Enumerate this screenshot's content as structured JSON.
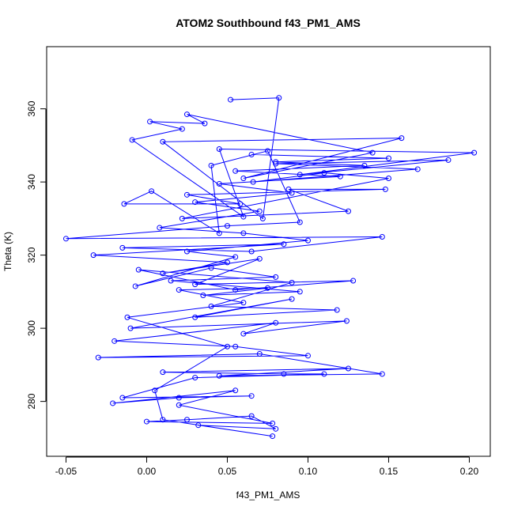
{
  "chart_data": {
    "type": "line",
    "title": "ATOM2 Southbound f43_PM1_AMS",
    "xlabel": "f43_PM1_AMS",
    "ylabel": "Theta (K)",
    "xlim": [
      -0.062,
      0.213
    ],
    "ylim": [
      265,
      377
    ],
    "x_ticks": [
      -0.05,
      0.0,
      0.05,
      0.1,
      0.15,
      0.2
    ],
    "x_tick_labels": [
      "-0.05",
      "0.00",
      "0.05",
      "0.10",
      "0.15",
      "0.20"
    ],
    "y_ticks": [
      280,
      300,
      320,
      340,
      360
    ],
    "y_tick_labels": [
      "280",
      "300",
      "320",
      "340",
      "360"
    ],
    "grid": false,
    "legend": "none",
    "series_color": "#0000ff",
    "series": [
      {
        "values": [
          [
            0.052,
            362.5
          ],
          [
            0.082,
            363.0
          ],
          [
            0.072,
            330.0
          ],
          [
            0.01,
            351.0
          ],
          [
            0.158,
            352.0
          ],
          [
            0.06,
            341.0
          ],
          [
            0.14,
            348.0
          ],
          [
            0.025,
            358.5
          ],
          [
            0.036,
            356.0
          ],
          [
            0.002,
            356.5
          ],
          [
            0.022,
            354.5
          ],
          [
            -0.009,
            351.5
          ],
          [
            0.06,
            330.5
          ],
          [
            0.045,
            349.0
          ],
          [
            0.203,
            348.0
          ],
          [
            0.095,
            342.0
          ],
          [
            0.187,
            346.0
          ],
          [
            0.08,
            345.0
          ],
          [
            0.168,
            343.5
          ],
          [
            0.066,
            340.0
          ],
          [
            0.11,
            342.5
          ],
          [
            0.15,
            341.0
          ],
          [
            0.022,
            330.0
          ],
          [
            0.125,
            332.0
          ],
          [
            0.088,
            338.0
          ],
          [
            0.148,
            338.0
          ],
          [
            0.025,
            336.5
          ],
          [
            0.058,
            334.0
          ],
          [
            -0.014,
            334.0
          ],
          [
            0.003,
            337.5
          ],
          [
            0.045,
            326.0
          ],
          [
            0.04,
            344.5
          ],
          [
            0.075,
            348.5
          ],
          [
            0.095,
            329.0
          ],
          [
            0.05,
            328.0
          ],
          [
            -0.05,
            324.5
          ],
          [
            0.146,
            325.0
          ],
          [
            0.065,
            321.0
          ],
          [
            -0.015,
            322.0
          ],
          [
            0.085,
            323.0
          ],
          [
            -0.033,
            320.0
          ],
          [
            0.05,
            318.0
          ],
          [
            0.01,
            315.0
          ],
          [
            0.07,
            319.0
          ],
          [
            0.03,
            312.0
          ],
          [
            0.128,
            313.0
          ],
          [
            0.055,
            310.5
          ],
          [
            -0.005,
            316.0
          ],
          [
            0.09,
            312.5
          ],
          [
            0.04,
            306.0
          ],
          [
            0.118,
            305.0
          ],
          [
            0.03,
            303.0
          ],
          [
            0.09,
            308.0
          ],
          [
            -0.01,
            300.0
          ],
          [
            0.124,
            302.0
          ],
          [
            0.06,
            298.5
          ],
          [
            0.08,
            301.5
          ],
          [
            -0.02,
            296.5
          ],
          [
            0.055,
            295.0
          ],
          [
            0.1,
            292.5
          ],
          [
            -0.03,
            292.0
          ],
          [
            0.07,
            293.0
          ],
          [
            0.146,
            287.5
          ],
          [
            0.045,
            287.0
          ],
          [
            0.125,
            289.0
          ],
          [
            0.01,
            288.0
          ],
          [
            0.085,
            287.5
          ],
          [
            0.11,
            287.5
          ],
          [
            0.03,
            286.5
          ],
          [
            -0.015,
            281.0
          ],
          [
            0.065,
            281.5
          ],
          [
            0.02,
            281.0
          ],
          [
            -0.021,
            279.5
          ],
          [
            0.055,
            283.0
          ],
          [
            0.02,
            279.0
          ],
          [
            0.078,
            274.0
          ],
          [
            0.0,
            274.5
          ],
          [
            0.025,
            275.0
          ],
          [
            0.065,
            276.0
          ],
          [
            0.08,
            272.5
          ],
          [
            0.032,
            273.5
          ],
          [
            0.078,
            270.5
          ],
          [
            0.01,
            275.0
          ],
          [
            0.005,
            283.0
          ],
          [
            0.05,
            295.0
          ],
          [
            -0.012,
            303.0
          ],
          [
            0.06,
            307.0
          ],
          [
            0.02,
            310.5
          ],
          [
            0.075,
            311.0
          ],
          [
            0.035,
            309.0
          ],
          [
            0.095,
            310.0
          ],
          [
            0.015,
            313.0
          ],
          [
            0.08,
            314.0
          ],
          [
            0.04,
            316.5
          ],
          [
            -0.007,
            311.5
          ],
          [
            0.055,
            319.5
          ],
          [
            0.025,
            321.0
          ],
          [
            0.1,
            324.0
          ],
          [
            0.06,
            326.0
          ],
          [
            0.008,
            327.5
          ],
          [
            0.07,
            332.0
          ],
          [
            0.03,
            334.5
          ],
          [
            0.09,
            337.0
          ],
          [
            0.045,
            339.5
          ],
          [
            0.12,
            341.5
          ],
          [
            0.055,
            343.0
          ],
          [
            0.135,
            344.5
          ],
          [
            0.08,
            345.5
          ],
          [
            0.15,
            346.5
          ],
          [
            0.065,
            347.5
          ]
        ]
      }
    ]
  }
}
